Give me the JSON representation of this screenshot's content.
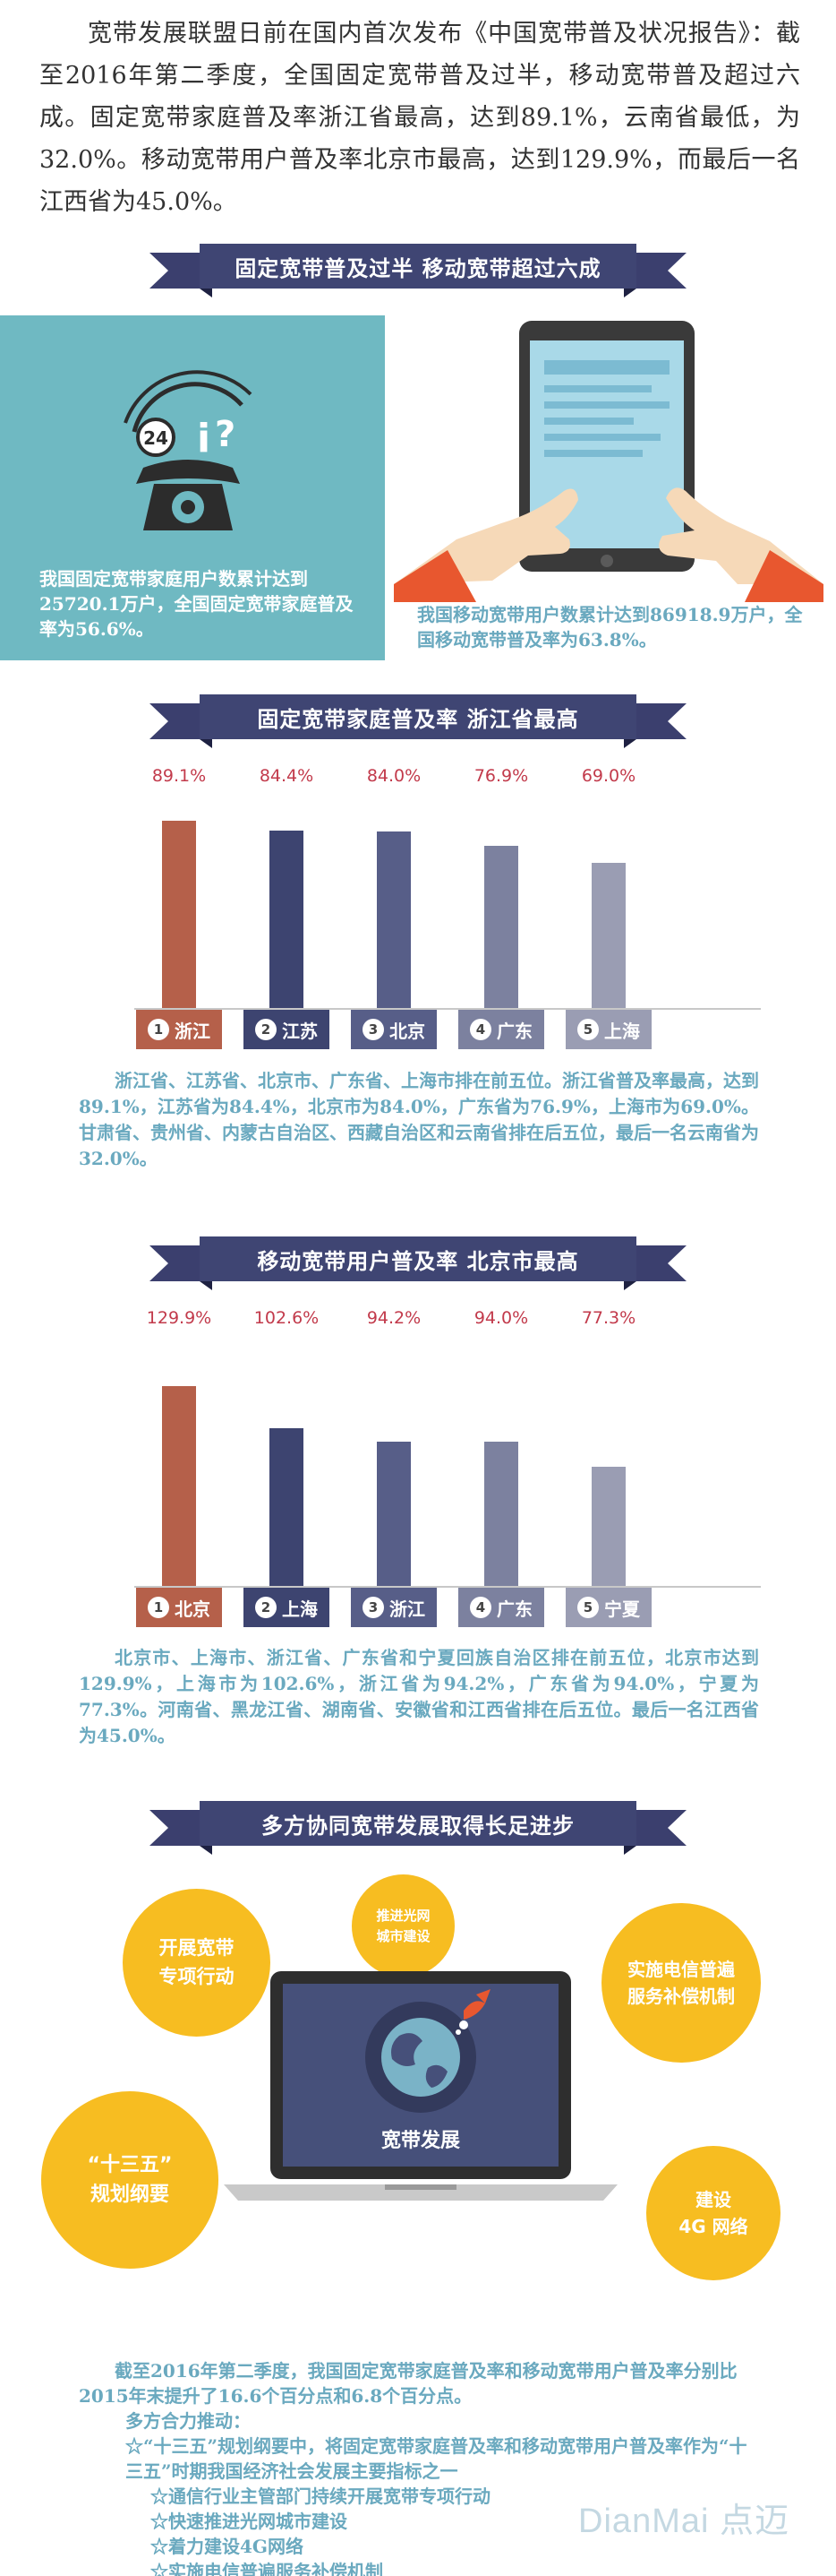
{
  "intro": "宽带发展联盟日前在国内首次发布《中国宽带普及状况报告》：截至2016年第二季度，全国固定宽带普及过半，移动宽带普及超过六成。固定宽带家庭普及率浙江省最高，达到89.1%，云南省最低，为32.0%。移动宽带用户普及率北京市最高，达到129.9%，而最后一名江西省为45.0%。",
  "banners": {
    "b1": "固定宽带普及过半  移动宽带超过六成",
    "b2": "固定宽带家庭普及率  浙江省最高",
    "b3": "移动宽带用户普及率  北京市最高",
    "b4": "多方协同宽带发展取得长足进步"
  },
  "section1": {
    "phone_badge": "24",
    "fixed_text": "我国固定宽带家庭用户数累计达到25720.1万户，全国固定宽带家庭普及率为56.6%。",
    "mobile_text": "我国移动宽带用户数累计达到86918.9万户，全国移动宽带普及率为63.8%。"
  },
  "colors": [
    "#b5604a",
    "#3d4470",
    "#575e88",
    "#7c819f",
    "#9a9db3"
  ],
  "chart_data": [
    {
      "type": "bar",
      "categories": [
        "浙江",
        "江苏",
        "北京",
        "广东",
        "上海"
      ],
      "values": [
        89.1,
        84.4,
        84.0,
        76.9,
        69.0
      ],
      "labels": [
        "89.1%",
        "84.4%",
        "84.0%",
        "76.9%",
        "69.0%"
      ],
      "ranks": [
        "1",
        "2",
        "3",
        "4",
        "5"
      ],
      "ylim": [
        0,
        100
      ]
    },
    {
      "type": "bar",
      "categories": [
        "北京",
        "上海",
        "浙江",
        "广东",
        "宁夏"
      ],
      "values": [
        129.9,
        102.6,
        94.2,
        94.0,
        77.3
      ],
      "labels": [
        "129.9%",
        "102.6%",
        "94.2%",
        "94.0%",
        "77.3%"
      ],
      "ranks": [
        "1",
        "2",
        "3",
        "4",
        "5"
      ],
      "ylim": [
        0,
        140
      ]
    }
  ],
  "para1": "浙江省、江苏省、北京市、广东省、上海市排在前五位。浙江省普及率最高，达到89.1%，江苏省为84.4%，北京市为84.0%，广东省为76.9%，上海市为69.0%。甘肃省、贵州省、内蒙古自治区、西藏自治区和云南省排在后五位，最后一名云南省为32.0%。",
  "para2": "北京市、上海市、浙江省、广东省和宁夏回族自治区排在前五位，北京市达到129.9%，上海市为102.6%，浙江省为94.2%，广东省为94.0%，宁夏为77.3%。河南省、黑龙江省、湖南省、安徽省和江西省排在后五位。最后一名江西省为45.0%。",
  "circles": {
    "c1": "开展宽带\n专项行动",
    "c2": "推进光网\n城市建设",
    "c3": "实施电信普遍\n服务补偿机制",
    "c4": "“十三五”\n规划纲要",
    "c5": "建设\n4G 网络"
  },
  "laptop_label": "宽带发展",
  "bottom": {
    "p1": "截至2016年第二季度，我国固定宽带家庭普及率和移动宽带用户普及率分别比2015年末提升了16.6个百分点和6.8个百分点。",
    "p2": "多方合力推动：",
    "items": [
      "☆“十三五”规划纲要中，将固定宽带家庭普及率和移动宽带用户普及率作为“十三五”时期我国经济社会发展主要指标之一",
      "☆通信行业主管部门持续开展宽带专项行动",
      "☆快速推进光网城市建设",
      "☆着力建设4G网络",
      "☆实施电信普遍服务补偿机制"
    ]
  },
  "watermark": "DianMai 点迈"
}
